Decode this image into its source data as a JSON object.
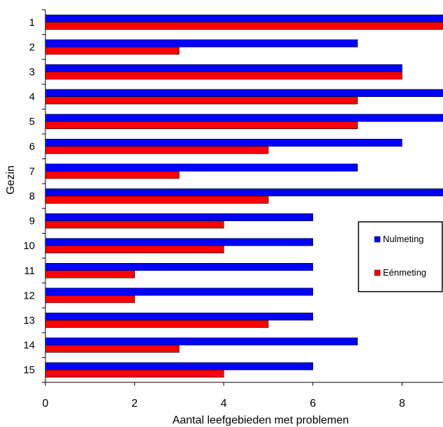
{
  "chart_data": {
    "type": "bar",
    "orientation": "horizontal",
    "title": "",
    "xlabel": "Aantal leefgebieden met problemen",
    "ylabel": "Gezin",
    "xlim": [
      0,
      9
    ],
    "xticks": [
      0,
      2,
      4,
      6,
      8
    ],
    "grid": false,
    "legend_position": "right",
    "categories": [
      "1",
      "2",
      "3",
      "4",
      "5",
      "6",
      "7",
      "8",
      "9",
      "10",
      "11",
      "12",
      "13",
      "14",
      "15"
    ],
    "series": [
      {
        "name": "Nulmeting",
        "color": "#0000ff",
        "values": [
          9,
          7,
          8,
          9,
          9,
          8,
          7,
          9,
          6,
          6,
          6,
          6,
          6,
          7,
          6
        ]
      },
      {
        "name": "Eénmeting",
        "color": "#ff0000",
        "values": [
          9,
          3,
          8,
          7,
          7,
          5,
          3,
          5,
          4,
          4,
          2,
          2,
          5,
          3,
          4
        ]
      }
    ]
  }
}
